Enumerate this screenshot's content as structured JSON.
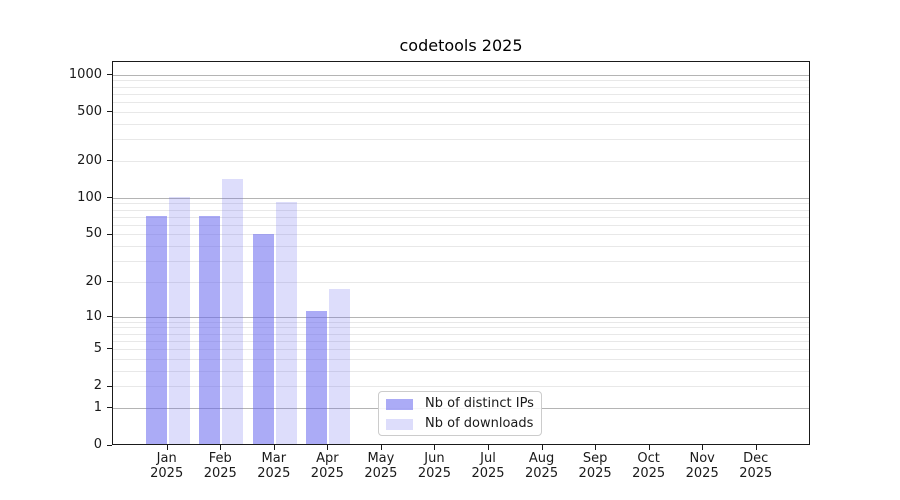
{
  "chart_data": {
    "type": "bar",
    "title": "codetools 2025",
    "months": [
      "Jan",
      "Feb",
      "Mar",
      "Apr",
      "May",
      "Jun",
      "Jul",
      "Aug",
      "Sep",
      "Oct",
      "Nov",
      "Dec"
    ],
    "year_label": "2025",
    "series": [
      {
        "name": "Nb of distinct IPs",
        "fill": "rgba(102,102,238,0.55)",
        "values": [
          70,
          69,
          49,
          11,
          0,
          0,
          0,
          0,
          0,
          0,
          0,
          0
        ]
      },
      {
        "name": "Nb of downloads",
        "fill": "rgba(102,102,238,0.22)",
        "values": [
          100,
          140,
          90,
          17,
          0,
          0,
          0,
          0,
          0,
          0,
          0,
          0
        ]
      }
    ],
    "yscale": "log1p",
    "ylim": [
      0,
      1294
    ],
    "y_ticks": [
      0,
      1,
      2,
      5,
      10,
      20,
      50,
      100,
      200,
      500,
      1000
    ],
    "grid": {
      "major": [
        1,
        10,
        100,
        1000
      ],
      "minor": [
        2,
        3,
        4,
        5,
        6,
        7,
        8,
        9,
        20,
        30,
        40,
        50,
        60,
        70,
        80,
        90,
        200,
        300,
        400,
        500,
        600,
        700,
        800,
        900
      ]
    },
    "legend_position": "bottom-center",
    "grid_on": true
  }
}
